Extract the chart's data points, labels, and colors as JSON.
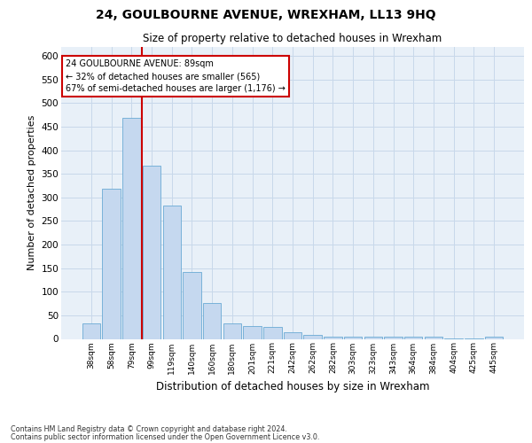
{
  "title": "24, GOULBOURNE AVENUE, WREXHAM, LL13 9HQ",
  "subtitle": "Size of property relative to detached houses in Wrexham",
  "xlabel": "Distribution of detached houses by size in Wrexham",
  "ylabel": "Number of detached properties",
  "categories": [
    "38sqm",
    "58sqm",
    "79sqm",
    "99sqm",
    "119sqm",
    "140sqm",
    "160sqm",
    "180sqm",
    "201sqm",
    "221sqm",
    "242sqm",
    "262sqm",
    "282sqm",
    "303sqm",
    "323sqm",
    "343sqm",
    "364sqm",
    "384sqm",
    "404sqm",
    "425sqm",
    "445sqm"
  ],
  "values": [
    32,
    318,
    468,
    367,
    283,
    141,
    76,
    32,
    28,
    25,
    15,
    8,
    4,
    4,
    4,
    4,
    4,
    4,
    1,
    1,
    5
  ],
  "bar_color": "#c5d8ef",
  "bar_edge_color": "#6aaad4",
  "grid_color": "#c8d8ea",
  "background_color": "#e8f0f8",
  "red_line_x": 2.5,
  "annotation_line1": "24 GOULBOURNE AVENUE: 89sqm",
  "annotation_line2": "← 32% of detached houses are smaller (565)",
  "annotation_line3": "67% of semi-detached houses are larger (1,176) →",
  "annotation_box_color": "#ffffff",
  "annotation_box_edge": "#cc0000",
  "ylim": [
    0,
    620
  ],
  "yticks": [
    0,
    50,
    100,
    150,
    200,
    250,
    300,
    350,
    400,
    450,
    500,
    550,
    600
  ],
  "footnote1": "Contains HM Land Registry data © Crown copyright and database right 2024.",
  "footnote2": "Contains public sector information licensed under the Open Government Licence v3.0."
}
